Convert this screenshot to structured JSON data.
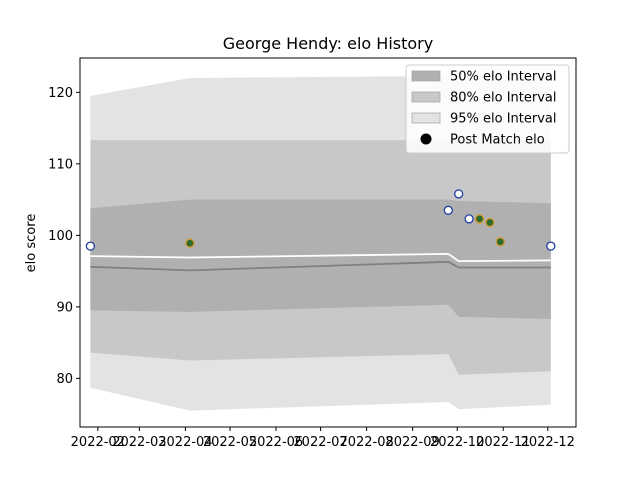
{
  "chart_data": {
    "type": "area",
    "title": "George Hendy: elo History",
    "xlabel": "",
    "ylabel": "elo score",
    "x_type": "date",
    "xlim": [
      "2022-01-20",
      "2022-12-20"
    ],
    "ylim": [
      73.2,
      124.8
    ],
    "y_ticks": [
      80,
      90,
      100,
      110,
      120
    ],
    "x_ticks": [
      "2022-02",
      "2022-03",
      "2022-04",
      "2022-05",
      "2022-06",
      "2022-07",
      "2022-08",
      "2022-09",
      "2022-10",
      "2022-11",
      "2022-12"
    ],
    "grid": false,
    "legend_position": "top-right",
    "legend": [
      {
        "label": "50% elo Interval",
        "kind": "band",
        "color": "#b0b0b0"
      },
      {
        "label": "80% elo Interval",
        "kind": "band",
        "color": "#c8c8c8"
      },
      {
        "label": "95% elo Interval",
        "kind": "band",
        "color": "#e3e3e3"
      },
      {
        "label": "Post Match elo",
        "kind": "marker",
        "color": "#000000"
      }
    ],
    "x": [
      "2022-01-27",
      "2022-04-04",
      "2022-09-25",
      "2022-10-02",
      "2022-12-03"
    ],
    "bands": [
      {
        "name": "95% elo Interval",
        "color": "#e3e3e3",
        "lower": [
          78.7,
          75.5,
          76.7,
          75.7,
          76.3
        ],
        "upper": [
          119.5,
          122.0,
          122.3,
          122.3,
          122.3
        ]
      },
      {
        "name": "80% elo Interval",
        "color": "#c8c8c8",
        "lower": [
          83.6,
          82.5,
          83.4,
          80.5,
          81.0
        ],
        "upper": [
          113.3,
          113.3,
          113.3,
          113.3,
          113.3
        ]
      },
      {
        "name": "50% elo Interval",
        "color": "#b0b0b0",
        "lower": [
          89.5,
          89.3,
          90.3,
          88.6,
          88.3
        ],
        "upper": [
          103.8,
          105.0,
          105.0,
          104.8,
          104.5
        ]
      }
    ],
    "lines": [
      {
        "color": "#ffffff",
        "values": [
          97.1,
          96.9,
          97.4,
          96.4,
          96.5
        ]
      },
      {
        "color": "#808080",
        "values": [
          95.6,
          95.1,
          96.3,
          95.5,
          95.5
        ]
      }
    ],
    "points": [
      {
        "date": "2022-01-27",
        "value": 98.5,
        "fill": "#ffffff",
        "edge": "#1f3fa0"
      },
      {
        "date": "2022-04-04",
        "value": 98.9,
        "fill": "#2e6b2e",
        "edge": "#d39a2c"
      },
      {
        "date": "2022-09-25",
        "value": 103.5,
        "fill": "#ffffff",
        "edge": "#1f3fa0"
      },
      {
        "date": "2022-10-02",
        "value": 105.8,
        "fill": "#ffffff",
        "edge": "#1f3fa0"
      },
      {
        "date": "2022-10-09",
        "value": 102.3,
        "fill": "#ffffff",
        "edge": "#1f3fa0"
      },
      {
        "date": "2022-10-16",
        "value": 102.3,
        "fill": "#2e6b2e",
        "edge": "#d39a2c"
      },
      {
        "date": "2022-10-23",
        "value": 101.8,
        "fill": "#2e6b2e",
        "edge": "#d39a2c"
      },
      {
        "date": "2022-10-30",
        "value": 99.1,
        "fill": "#2e6b2e",
        "edge": "#d39a2c"
      },
      {
        "date": "2022-12-03",
        "value": 98.5,
        "fill": "#ffffff",
        "edge": "#1f3fa0"
      }
    ]
  }
}
